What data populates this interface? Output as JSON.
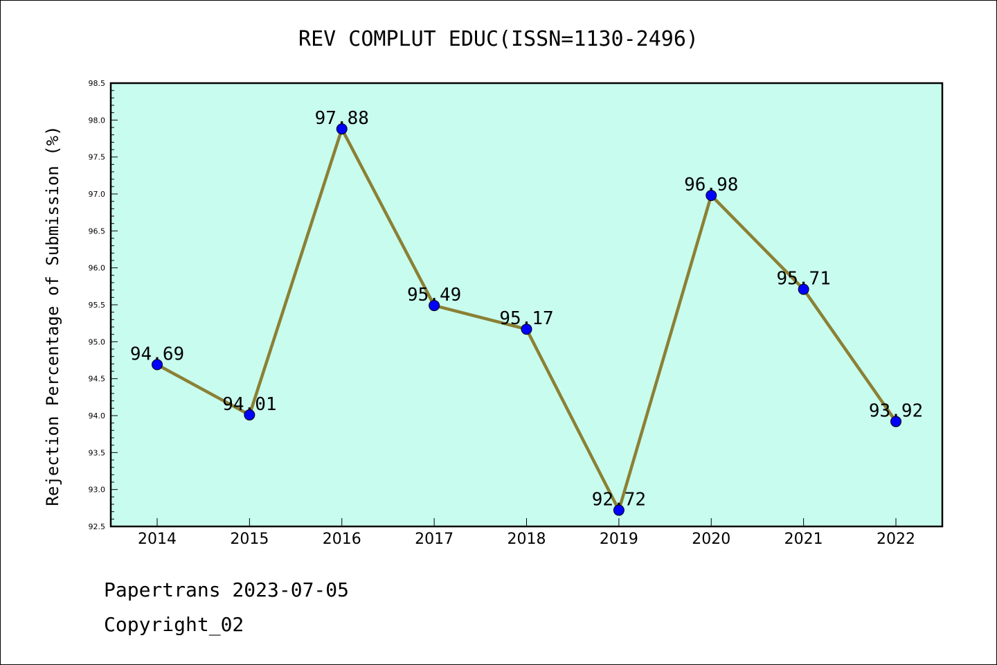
{
  "chart_data": {
    "type": "line",
    "title": "REV COMPLUT EDUC(ISSN=1130-2496)",
    "xlabel": "",
    "ylabel": "Rejection Percentage of Submission (%)",
    "categories": [
      "2014",
      "2015",
      "2016",
      "2017",
      "2018",
      "2019",
      "2020",
      "2021",
      "2022"
    ],
    "series": [
      {
        "values": [
          94.69,
          94.01,
          97.88,
          95.49,
          95.17,
          92.72,
          96.98,
          95.71,
          93.92
        ]
      }
    ],
    "data_labels": [
      "94.69",
      "94.01",
      "97.88",
      "95.49",
      "95.17",
      "92.72",
      "96.98",
      "95.71",
      "93.92"
    ],
    "ylim": [
      92.5,
      98.5
    ],
    "yticks": [
      "92.5",
      "93.0",
      "93.5",
      "94.0",
      "94.5",
      "95.0",
      "95.5",
      "96.0",
      "96.5",
      "97.0",
      "97.5",
      "98.0",
      "98.5"
    ],
    "grid": false,
    "colors": {
      "plot_background": "#c8fcee",
      "line": "#8b8035",
      "marker": "#0000ff"
    }
  },
  "footer": {
    "line1": "Papertrans 2023-07-05",
    "line2": "Copyright_02"
  }
}
